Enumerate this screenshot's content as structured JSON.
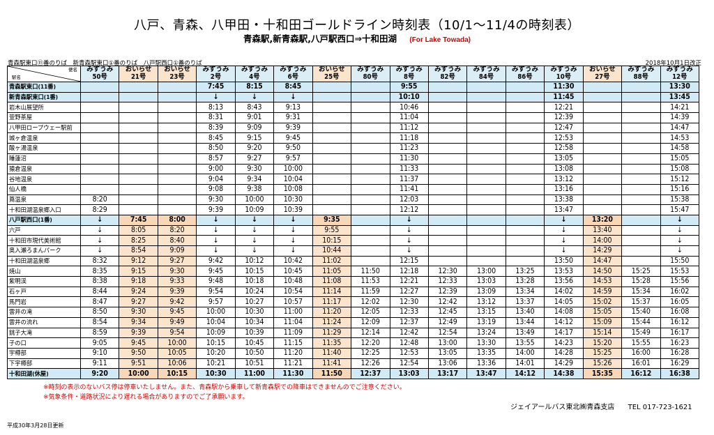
{
  "title": "八戸、青森、八甲田・十和田ゴールドライン時刻表（10/1～11/4の時刻表）",
  "subtitle": "青森駅,新青森駅,八戸駅西口⇒十和田湖",
  "subtitle_en": "(For Lake Towada)",
  "boarding": "青森駅東口⑪番のりば　新青森駅東口①番のりば　八戸駅西口①番のりば",
  "revised": "2018年10月1日改正",
  "corner": {
    "service": "便名",
    "station": "駅名"
  },
  "columns": [
    {
      "name": "みずうみ",
      "no": "50号",
      "orange": false
    },
    {
      "name": "おいらせ",
      "no": "21号",
      "orange": true
    },
    {
      "name": "おいらせ",
      "no": "23号",
      "orange": true
    },
    {
      "name": "みずうみ",
      "no": "2号",
      "orange": false
    },
    {
      "name": "みずうみ",
      "no": "4号",
      "orange": false
    },
    {
      "name": "みずうみ",
      "no": "6号",
      "orange": false
    },
    {
      "name": "おいらせ",
      "no": "25号",
      "orange": true
    },
    {
      "name": "みずうみ",
      "no": "80号",
      "orange": false
    },
    {
      "name": "みずうみ",
      "no": "8号",
      "orange": false
    },
    {
      "name": "みずうみ",
      "no": "82号",
      "orange": false
    },
    {
      "name": "みずうみ",
      "no": "84号",
      "orange": false
    },
    {
      "name": "みずうみ",
      "no": "86号",
      "orange": false
    },
    {
      "name": "みずうみ",
      "no": "10号",
      "orange": false
    },
    {
      "name": "おいらせ",
      "no": "27号",
      "orange": true
    },
    {
      "name": "みずうみ",
      "no": "88号",
      "orange": false
    },
    {
      "name": "みずうみ",
      "no": "12号",
      "orange": false
    }
  ],
  "rows": [
    {
      "stop": "青森駅東口(11番)",
      "hl": true,
      "cells": [
        "",
        "",
        "",
        "7:45",
        "8:15",
        "8:45",
        "",
        "",
        "9:55",
        "",
        "",
        "",
        "11:30",
        "",
        "",
        "13:30"
      ]
    },
    {
      "stop": "新青森駅東口(1番)",
      "hl": true,
      "cells": [
        "",
        "",
        "",
        "↓",
        "↓",
        "↓",
        "",
        "",
        "10:10",
        "",
        "",
        "",
        "11:45",
        "",
        "",
        "13:45"
      ]
    },
    {
      "stop": "岩木山展望所",
      "cells": [
        "",
        "",
        "",
        "8:13",
        "8:43",
        "9:13",
        "",
        "",
        "10:46",
        "",
        "",
        "",
        "12:21",
        "",
        "",
        "14:21"
      ]
    },
    {
      "stop": "萱野茶屋",
      "cells": [
        "",
        "",
        "",
        "8:31",
        "9:01",
        "9:31",
        "",
        "",
        "11:04",
        "",
        "",
        "",
        "12:39",
        "",
        "",
        "14:39"
      ]
    },
    {
      "stop": "八甲田ロープウェー駅前",
      "cells": [
        "",
        "",
        "",
        "8:39",
        "9:09",
        "9:39",
        "",
        "",
        "11:12",
        "",
        "",
        "",
        "12:47",
        "",
        "",
        "14:47"
      ]
    },
    {
      "stop": "城ヶ倉温泉",
      "cells": [
        "",
        "",
        "",
        "8:45",
        "9:15",
        "9:45",
        "",
        "",
        "11:18",
        "",
        "",
        "",
        "12:53",
        "",
        "",
        "14:53"
      ]
    },
    {
      "stop": "酸ヶ湯温泉",
      "cells": [
        "",
        "",
        "",
        "8:50",
        "9:20",
        "9:50",
        "",
        "",
        "11:23",
        "",
        "",
        "",
        "12:58",
        "",
        "",
        "14:58"
      ]
    },
    {
      "stop": "睡蓮沼",
      "cells": [
        "",
        "",
        "",
        "8:57",
        "9:27",
        "9:57",
        "",
        "",
        "11:30",
        "",
        "",
        "",
        "13:05",
        "",
        "",
        "15:05"
      ]
    },
    {
      "stop": "猿倉温泉",
      "cells": [
        "",
        "",
        "",
        "9:00",
        "9:30",
        "10:00",
        "",
        "",
        "11:33",
        "",
        "",
        "",
        "13:08",
        "",
        "",
        "15:08"
      ]
    },
    {
      "stop": "谷地温泉",
      "cells": [
        "",
        "",
        "",
        "9:04",
        "9:34",
        "10:04",
        "",
        "",
        "11:37",
        "",
        "",
        "",
        "13:12",
        "",
        "",
        "15:12"
      ]
    },
    {
      "stop": "仙人橋",
      "cells": [
        "",
        "",
        "",
        "9:08",
        "9:38",
        "10:08",
        "",
        "",
        "11:41",
        "",
        "",
        "",
        "13:16",
        "",
        "",
        "15:16"
      ]
    },
    {
      "stop": "蔦温泉",
      "cells": [
        "8:20",
        "",
        "",
        "9:30",
        "10:00",
        "10:30",
        "",
        "",
        "12:03",
        "",
        "",
        "",
        "13:38",
        "",
        "",
        "15:38"
      ]
    },
    {
      "stop": "十和田湖温泉郷入口",
      "cells": [
        "8:29",
        "",
        "",
        "9:39",
        "10:09",
        "10:39",
        "",
        "",
        "12:12",
        "",
        "",
        "",
        "13:47",
        "",
        "",
        "15:47"
      ]
    },
    {
      "stop": "八戸駅西口(1番)",
      "hl": true,
      "cells": [
        "↓",
        "7:45",
        "8:00",
        "↓",
        "↓",
        "↓",
        "9:35",
        "",
        "↓",
        "",
        "",
        "",
        "↓",
        "13:20",
        "",
        "↓"
      ]
    },
    {
      "stop": "六戸",
      "cells": [
        "↓",
        "8:05",
        "8:20",
        "↓",
        "↓",
        "↓",
        "9:55",
        "",
        "↓",
        "",
        "",
        "",
        "↓",
        "13:40",
        "",
        "↓"
      ]
    },
    {
      "stop": "十和田市現代美術館",
      "cells": [
        "↓",
        "8:25",
        "8:40",
        "↓",
        "↓",
        "↓",
        "10:15",
        "",
        "↓",
        "",
        "",
        "",
        "↓",
        "14:00",
        "",
        "↓"
      ]
    },
    {
      "stop": "奥入瀬ろまんパーク",
      "cells": [
        "↓",
        "8:54",
        "9:09",
        "↓",
        "↓",
        "↓",
        "10:44",
        "",
        "↓",
        "",
        "",
        "",
        "↓",
        "14:29",
        "",
        "↓"
      ]
    },
    {
      "stop": "十和田湖温泉郷",
      "cells": [
        "8:32",
        "9:12",
        "9:27",
        "9:42",
        "10:12",
        "10:42",
        "11:02",
        "",
        "12:15",
        "",
        "",
        "",
        "13:50",
        "14:47",
        "",
        "15:50"
      ]
    },
    {
      "stop": "焼山",
      "cells": [
        "8:35",
        "9:15",
        "9:30",
        "9:45",
        "10:15",
        "10:45",
        "11:05",
        "11:50",
        "12:18",
        "12:30",
        "13:00",
        "13:25",
        "13:53",
        "14:50",
        "15:25",
        "15:53"
      ]
    },
    {
      "stop": "紫明渓",
      "cells": [
        "8:38",
        "9:18",
        "9:33",
        "9:48",
        "10:18",
        "10:48",
        "11:08",
        "11:53",
        "12:21",
        "12:33",
        "13:03",
        "13:28",
        "13:56",
        "14:53",
        "15:28",
        "15:56"
      ]
    },
    {
      "stop": "石ヶ戸",
      "cells": [
        "8:44",
        "9:24",
        "9:39",
        "9:54",
        "10:24",
        "10:54",
        "11:14",
        "11:59",
        "12:27",
        "12:39",
        "13:09",
        "13:34",
        "14:02",
        "14:59",
        "15:34",
        "16:02"
      ]
    },
    {
      "stop": "馬門岩",
      "cells": [
        "8:47",
        "9:27",
        "9:42",
        "9:57",
        "10:27",
        "10:57",
        "11:17",
        "12:02",
        "12:30",
        "12:42",
        "13:12",
        "13:37",
        "14:05",
        "15:02",
        "15:37",
        "16:05"
      ]
    },
    {
      "stop": "雲井の滝",
      "cells": [
        "8:50",
        "9:30",
        "9:45",
        "10:00",
        "10:30",
        "11:00",
        "11:20",
        "12:05",
        "12:33",
        "12:45",
        "13:15",
        "13:40",
        "14:08",
        "15:05",
        "15:40",
        "16:08"
      ]
    },
    {
      "stop": "雲井の流れ",
      "cells": [
        "8:54",
        "9:34",
        "9:49",
        "10:04",
        "10:34",
        "11:04",
        "11:24",
        "12:09",
        "12:37",
        "12:49",
        "13:19",
        "13:44",
        "14:12",
        "15:09",
        "15:44",
        "16:12"
      ]
    },
    {
      "stop": "銚子大滝",
      "cells": [
        "8:59",
        "9:39",
        "9:54",
        "10:09",
        "10:39",
        "11:09",
        "11:29",
        "12:14",
        "12:42",
        "12:54",
        "13:24",
        "13:49",
        "14:17",
        "15:14",
        "15:49",
        "16:17"
      ]
    },
    {
      "stop": "子の口",
      "cells": [
        "9:05",
        "9:45",
        "10:00",
        "10:15",
        "10:45",
        "11:15",
        "11:35",
        "12:20",
        "12:48",
        "13:00",
        "13:30",
        "13:55",
        "14:23",
        "15:20",
        "15:55",
        "16:23"
      ]
    },
    {
      "stop": "宇樽部",
      "cells": [
        "9:10",
        "9:50",
        "10:05",
        "10:20",
        "10:50",
        "11:20",
        "11:40",
        "12:25",
        "12:53",
        "13:05",
        "13:35",
        "14:00",
        "14:28",
        "15:25",
        "16:00",
        "16:28"
      ]
    },
    {
      "stop": "下宇樽部",
      "cells": [
        "9:11",
        "9:51",
        "10:06",
        "10:21",
        "10:51",
        "11:21",
        "11:41",
        "12:26",
        "12:54",
        "13:06",
        "13:36",
        "14:01",
        "14:29",
        "15:26",
        "16:01",
        "16:29"
      ]
    },
    {
      "stop": "十和田湖(休屋)",
      "hl": true,
      "cells": [
        "9:20",
        "10:00",
        "10:15",
        "10:30",
        "11:00",
        "11:30",
        "11:50",
        "12:37",
        "13:03",
        "13:17",
        "13:47",
        "14:12",
        "14:38",
        "15:35",
        "16:12",
        "16:38"
      ]
    }
  ],
  "notes": [
    "※時刻の表示のないバス停は停車いたしません。また、青森駅から乗車して新青森駅での降車はできませんのでご注意ください。",
    "※気象条件・道路状況により遅れる場合がありますのでご了承願います。"
  ],
  "company": "ジェイアールバス東北㈱青森支店",
  "tel": "TEL 017-723-1621",
  "updated": "平成30年3月28日更新"
}
